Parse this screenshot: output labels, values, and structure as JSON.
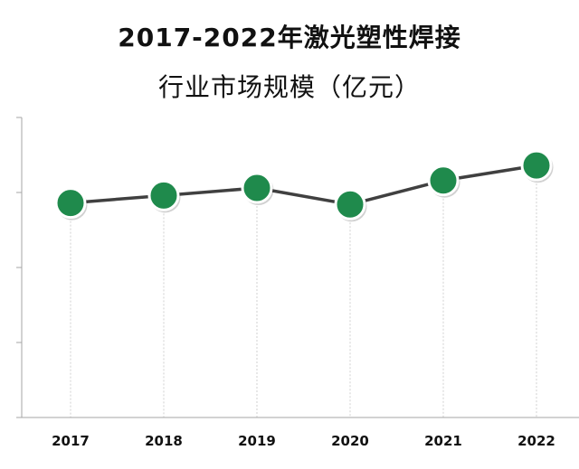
{
  "title_line1": "2017-2022年激光塑性焊接",
  "title_line2": "行业市场规模（亿元）",
  "colors": {
    "line": "#404040",
    "marker_fill": "#1f8a4c",
    "marker_stroke": "#ffffff",
    "gridline": "#d0d0d0",
    "axis": "#a6a6a6"
  },
  "chart_data": {
    "type": "line",
    "title": "2017-2022年激光塑性焊接行业市场规模（亿元）",
    "categories": [
      "2017",
      "2018",
      "2019",
      "2020",
      "2021",
      "2022"
    ],
    "values": [
      14.3,
      14.8,
      15.3,
      14.2,
      15.8,
      16.8
    ],
    "ylim": [
      0,
      20
    ],
    "grid": "vertical-dashed",
    "markers": "circle",
    "legend": "none"
  }
}
